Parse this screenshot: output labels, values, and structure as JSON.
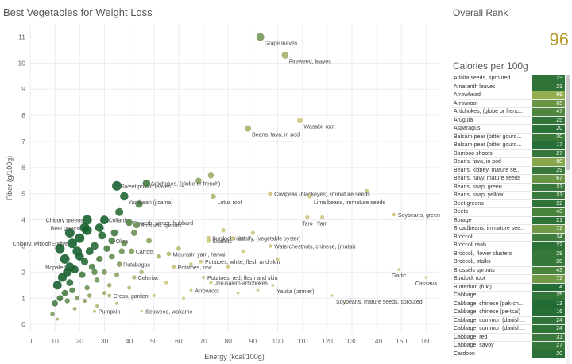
{
  "title": "Best Vegetables for Weight Loss",
  "overall_rank": {
    "title": "Overall Rank",
    "value": "96"
  },
  "calories_panel": {
    "title": "Calories per 100g",
    "items": [
      {
        "name": "Alfalfa seeds, sprouted",
        "value": 23
      },
      {
        "name": "Amaranth leaves",
        "value": 23
      },
      {
        "name": "Arrowhead",
        "value": 99
      },
      {
        "name": "Arrowroot",
        "value": 65
      },
      {
        "name": "Artichokes, (globe or frenc...",
        "value": 47
      },
      {
        "name": "Arugula",
        "value": 25
      },
      {
        "name": "Asparagus",
        "value": 20
      },
      {
        "name": "Balsam-pear (bitter gourd...",
        "value": 30
      },
      {
        "name": "Balsam-pear (bitter gourd...",
        "value": 17
      },
      {
        "name": "Bamboo shoots",
        "value": 27
      },
      {
        "name": "Beans, fava, in pod",
        "value": 88
      },
      {
        "name": "Beans, kidney, mature se...",
        "value": 29
      },
      {
        "name": "Beans, navy, mature seeds",
        "value": 67
      },
      {
        "name": "Beans, snap, green",
        "value": 31
      },
      {
        "name": "Beans, snap, yellow",
        "value": 31
      },
      {
        "name": "Beet greens",
        "value": 22
      },
      {
        "name": "Beets",
        "value": 43
      },
      {
        "name": "Borage",
        "value": 21
      },
      {
        "name": "Broadbeans, immature see...",
        "value": 72
      },
      {
        "name": "Broccoli",
        "value": 34
      },
      {
        "name": "Broccoli raab",
        "value": 22
      },
      {
        "name": "Broccoli, flower clusters",
        "value": 28
      },
      {
        "name": "Broccoli, stalks",
        "value": 28
      },
      {
        "name": "Brussels sprouts",
        "value": 43
      },
      {
        "name": "Burdock root",
        "value": 72
      },
      {
        "name": "Butterbur, (fuki)",
        "value": 14
      },
      {
        "name": "Cabbage",
        "value": 25
      },
      {
        "name": "Cabbage, chinese (pak-ch...",
        "value": 13
      },
      {
        "name": "Cabbage, chinese (pe-tsai)",
        "value": 16
      },
      {
        "name": "Cabbage, common (danish...",
        "value": 24
      },
      {
        "name": "Cabbage, common (danish...",
        "value": 24
      },
      {
        "name": "Cabbage, red",
        "value": 31
      },
      {
        "name": "Cabbage, savoy",
        "value": 27
      },
      {
        "name": "Cardoon",
        "value": 20
      }
    ]
  },
  "chart_data": {
    "type": "scatter",
    "title": "Best Vegetables for Weight Loss",
    "xlabel": "Energy (kcal/100g)",
    "ylabel": "Fiber (g/100g)",
    "xlim": [
      0,
      165
    ],
    "ylim": [
      -0.3,
      11.5
    ],
    "xticks": [
      0,
      10,
      20,
      30,
      40,
      50,
      60,
      70,
      80,
      90,
      100,
      110,
      120,
      130,
      140,
      150,
      160
    ],
    "yticks": [
      0,
      1,
      2,
      3,
      4,
      5,
      6,
      7,
      8,
      9,
      10,
      11
    ],
    "grid": true,
    "color_encoding": "Overall Rank (dark green = better rank, pale olive = worse)",
    "labeled_points": [
      {
        "label": "Grape leaves",
        "x": 93,
        "y": 11.0
      },
      {
        "label": "Fireweed, leaves",
        "x": 103,
        "y": 10.3
      },
      {
        "label": "Wasabi, root",
        "x": 109,
        "y": 7.8
      },
      {
        "label": "Beans, fava, in pod",
        "x": 88,
        "y": 7.5
      },
      {
        "label": "Sweet potato leaves",
        "x": 35,
        "y": 5.3
      },
      {
        "label": "Artichokes, (globe or french)",
        "x": 47,
        "y": 5.4
      },
      {
        "label": "Cowpeas (blackeyes), immature seeds",
        "x": 97,
        "y": 5.0
      },
      {
        "label": "Yambean (jicama)",
        "x": 38,
        "y": 4.9
      },
      {
        "label": "Lotus root",
        "x": 74,
        "y": 4.9
      },
      {
        "label": "Lima beans, immature seeds",
        "x": 113,
        "y": 4.9
      },
      {
        "label": "Collards",
        "x": 30,
        "y": 4.0
      },
      {
        "label": "Squash, winter, hubbard",
        "x": 40,
        "y": 3.9
      },
      {
        "label": "Chicory greens",
        "x": 23,
        "y": 4.0
      },
      {
        "label": "Brussels sprouts",
        "x": 43,
        "y": 3.8
      },
      {
        "label": "Taro",
        "x": 112,
        "y": 4.1
      },
      {
        "label": "Yam",
        "x": 118,
        "y": 4.1
      },
      {
        "label": "Soybeans, green",
        "x": 147,
        "y": 4.2
      },
      {
        "label": "Beet greens",
        "x": 22,
        "y": 3.7
      },
      {
        "label": "Okra",
        "x": 33,
        "y": 3.2
      },
      {
        "label": "Chicory, witloof/Endive",
        "x": 17,
        "y": 3.1
      },
      {
        "label": "Burdock root",
        "x": 72,
        "y": 3.3
      },
      {
        "label": "Salsify, (vegetable oyster)",
        "x": 82,
        "y": 3.3
      },
      {
        "label": "Carrots",
        "x": 41,
        "y": 2.8
      },
      {
        "label": "Shallots",
        "x": 72,
        "y": 3.2
      },
      {
        "label": "Waterchestnuts, chinese, (matai)",
        "x": 97,
        "y": 3.0
      },
      {
        "label": "Mountain yam, hawaii",
        "x": 56,
        "y": 2.7
      },
      {
        "label": "Rutabagas",
        "x": 36,
        "y": 2.3
      },
      {
        "label": "Potatoes, raw",
        "x": 58,
        "y": 2.2
      },
      {
        "label": "Potatoes, white, flesh and skin",
        "x": 69,
        "y": 2.4
      },
      {
        "label": "Nopales",
        "x": 16,
        "y": 2.2
      },
      {
        "label": "Celeriac",
        "x": 42,
        "y": 1.8
      },
      {
        "label": "Garlic",
        "x": 149,
        "y": 2.1
      },
      {
        "label": "Cassava",
        "x": 160,
        "y": 1.8
      },
      {
        "label": "Potatoes, red, flesh and skin",
        "x": 70,
        "y": 1.8
      },
      {
        "label": "Jerusalem-artichokes",
        "x": 73,
        "y": 1.6
      },
      {
        "label": "Yautia (tannier)",
        "x": 98,
        "y": 1.5
      },
      {
        "label": "Arrowroot",
        "x": 65,
        "y": 1.3
      },
      {
        "label": "Cress, garden",
        "x": 32,
        "y": 1.1
      },
      {
        "label": "Soybeans, mature seeds, sprouted",
        "x": 122,
        "y": 1.1
      },
      {
        "label": "Pumpkin",
        "x": 26,
        "y": 0.5
      },
      {
        "label": "Seaweed, wakame",
        "x": 45,
        "y": 0.5
      }
    ],
    "unlabeled_points": [
      {
        "x": 12,
        "y": 1.0
      },
      {
        "x": 14,
        "y": 1.2
      },
      {
        "x": 10,
        "y": 0.8
      },
      {
        "x": 11,
        "y": 1.5
      },
      {
        "x": 13,
        "y": 1.8
      },
      {
        "x": 15,
        "y": 2.0
      },
      {
        "x": 16,
        "y": 1.6
      },
      {
        "x": 17,
        "y": 1.3
      },
      {
        "x": 18,
        "y": 2.1
      },
      {
        "x": 19,
        "y": 1.0
      },
      {
        "x": 20,
        "y": 2.6
      },
      {
        "x": 21,
        "y": 1.9
      },
      {
        "x": 22,
        "y": 2.4
      },
      {
        "x": 23,
        "y": 1.4
      },
      {
        "x": 24,
        "y": 2.8
      },
      {
        "x": 25,
        "y": 2.2
      },
      {
        "x": 26,
        "y": 3.0
      },
      {
        "x": 27,
        "y": 1.7
      },
      {
        "x": 28,
        "y": 2.5
      },
      {
        "x": 29,
        "y": 3.4
      },
      {
        "x": 30,
        "y": 2.0
      },
      {
        "x": 31,
        "y": 2.9
      },
      {
        "x": 32,
        "y": 1.5
      },
      {
        "x": 33,
        "y": 2.6
      },
      {
        "x": 34,
        "y": 3.5
      },
      {
        "x": 35,
        "y": 1.9
      },
      {
        "x": 37,
        "y": 2.8
      },
      {
        "x": 38,
        "y": 3.1
      },
      {
        "x": 20,
        "y": 3.3
      },
      {
        "x": 22,
        "y": 0.9
      },
      {
        "x": 24,
        "y": 1.1
      },
      {
        "x": 18,
        "y": 0.6
      },
      {
        "x": 14,
        "y": 2.5
      },
      {
        "x": 12,
        "y": 2.9
      },
      {
        "x": 16,
        "y": 3.5
      },
      {
        "x": 26,
        "y": 2.0
      },
      {
        "x": 28,
        "y": 3.7
      },
      {
        "x": 30,
        "y": 1.2
      },
      {
        "x": 35,
        "y": 0.8
      },
      {
        "x": 40,
        "y": 1.4
      },
      {
        "x": 42,
        "y": 3.5
      },
      {
        "x": 45,
        "y": 2.0
      },
      {
        "x": 48,
        "y": 3.2
      },
      {
        "x": 50,
        "y": 1.1
      },
      {
        "x": 52,
        "y": 2.6
      },
      {
        "x": 55,
        "y": 1.6
      },
      {
        "x": 60,
        "y": 2.9
      },
      {
        "x": 62,
        "y": 1.0
      },
      {
        "x": 65,
        "y": 2.3
      },
      {
        "x": 78,
        "y": 3.6
      },
      {
        "x": 80,
        "y": 2.2
      },
      {
        "x": 84,
        "y": 1.2
      },
      {
        "x": 86,
        "y": 2.8
      },
      {
        "x": 90,
        "y": 3.5
      },
      {
        "x": 92,
        "y": 1.3
      },
      {
        "x": 68,
        "y": 5.5
      },
      {
        "x": 73,
        "y": 5.7
      },
      {
        "x": 136,
        "y": 5.1
      },
      {
        "x": 127,
        "y": 0.8
      },
      {
        "x": 100,
        "y": 2.5
      },
      {
        "x": 9,
        "y": 0.4
      },
      {
        "x": 11,
        "y": 0.2
      },
      {
        "x": 15,
        "y": 0.9
      },
      {
        "x": 19,
        "y": 2.8
      },
      {
        "x": 23,
        "y": 3.6
      },
      {
        "x": 27,
        "y": 0.7
      },
      {
        "x": 36,
        "y": 4.3
      },
      {
        "x": 44,
        "y": 4.6
      }
    ]
  },
  "colors": {
    "dark_green": "#1f6e35",
    "mid_green": "#5a9a43",
    "light_green": "#9dbc5a",
    "olive": "#c8c77a",
    "rank_highlight": "#b59a2a",
    "grid": "#ececf4"
  }
}
